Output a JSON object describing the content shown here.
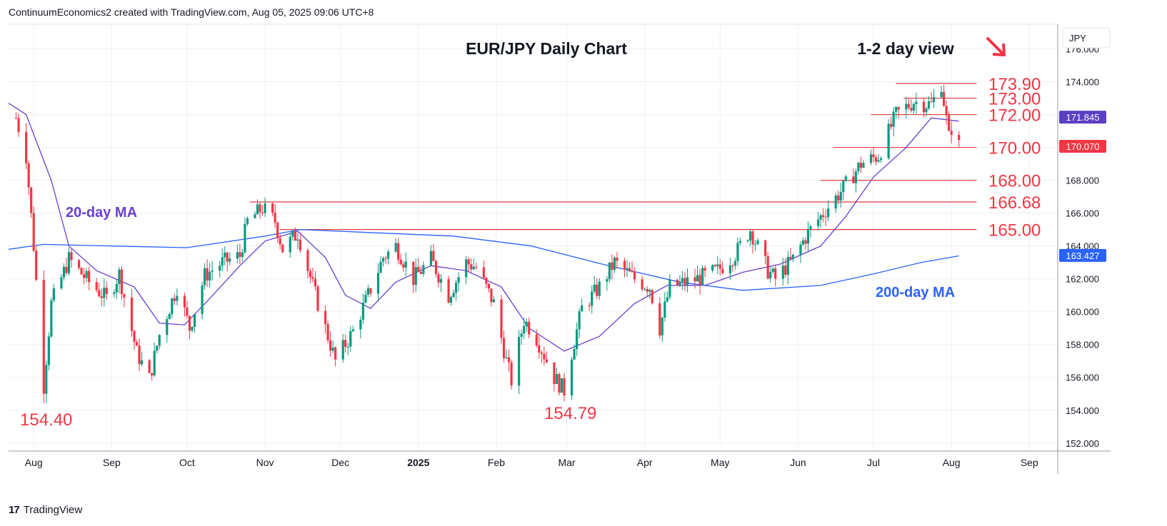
{
  "header": {
    "attribution": "ContinuumEconomics2 created with TradingView.com, Aug 05, 2025 09:06 UTC+8"
  },
  "footer": {
    "brand": "TradingView",
    "logo_icon": "tradingview-logo-icon"
  },
  "chart_data": {
    "type": "candlestick",
    "title": "EUR/JPY Daily Chart",
    "subtitle": "1-2 day view",
    "currency_label": "JPY",
    "view_arrow_icon": "down-right-arrow-icon",
    "ylim": [
      151.6,
      177.5
    ],
    "y_ticks": [
      "152.000",
      "154.000",
      "156.000",
      "158.000",
      "160.000",
      "162.000",
      "164.000",
      "166.000",
      "168.000",
      "170.000",
      "172.000",
      "174.000",
      "176.000"
    ],
    "x_tick_labels": [
      "Aug",
      "Sep",
      "Oct",
      "Nov",
      "Dec",
      "2025",
      "Feb",
      "Mar",
      "Apr",
      "May",
      "Jun",
      "Jul",
      "Aug",
      "Sep"
    ],
    "level_lines": [
      {
        "label": "173.90",
        "value": 173.9
      },
      {
        "label": "173.00",
        "value": 173.0
      },
      {
        "label": "172.00",
        "value": 172.0
      },
      {
        "label": "170.00",
        "value": 170.0
      },
      {
        "label": "168.00",
        "value": 168.0
      },
      {
        "label": "166.68",
        "value": 166.68
      },
      {
        "label": "165.00",
        "value": 165.0
      }
    ],
    "annotations": [
      {
        "label": "154.40",
        "value": 154.4
      },
      {
        "label": "154.79",
        "value": 154.79
      },
      {
        "label": "20-day MA"
      },
      {
        "label": "200-day MA"
      }
    ],
    "price_badges": [
      {
        "label": "171.845",
        "value": 171.845,
        "color": "#5b3fc4"
      },
      {
        "label": "170.070",
        "value": 170.07,
        "color": "#f23645"
      },
      {
        "label": "163.427",
        "value": 163.427,
        "color": "#2962ff"
      }
    ],
    "colors": {
      "up": "#089981",
      "down": "#f23645",
      "ma20": "#6a3fd1",
      "ma200": "#2962ff",
      "level": "#e03a3e",
      "text_red": "#f23645"
    },
    "price_path": [
      [
        "2024-07-25",
        171.8
      ],
      [
        "2024-07-29",
        169.5
      ],
      [
        "2024-08-01",
        164.0
      ],
      [
        "2024-08-05",
        155.5
      ],
      [
        "2024-08-08",
        160.5
      ],
      [
        "2024-08-15",
        163.2
      ],
      [
        "2024-08-23",
        161.8
      ],
      [
        "2024-08-30",
        160.8
      ],
      [
        "2024-09-04",
        162.3
      ],
      [
        "2024-09-11",
        157.5
      ],
      [
        "2024-09-16",
        155.9
      ],
      [
        "2024-09-20",
        158.6
      ],
      [
        "2024-09-27",
        161.5
      ],
      [
        "2024-10-02",
        159.0
      ],
      [
        "2024-10-08",
        162.2
      ],
      [
        "2024-10-15",
        163.0
      ],
      [
        "2024-10-22",
        163.4
      ],
      [
        "2024-10-25",
        165.5
      ],
      [
        "2024-10-31",
        166.3
      ],
      [
        "2024-11-05",
        165.5
      ],
      [
        "2024-11-08",
        163.8
      ],
      [
        "2024-11-14",
        164.8
      ],
      [
        "2024-11-22",
        160.5
      ],
      [
        "2024-11-29",
        157.0
      ],
      [
        "2024-12-06",
        158.8
      ],
      [
        "2024-12-12",
        161.0
      ],
      [
        "2024-12-18",
        163.3
      ],
      [
        "2024-12-23",
        164.0
      ],
      [
        "2024-12-30",
        162.0
      ],
      [
        "2025-01-06",
        163.2
      ],
      [
        "2025-01-13",
        161.0
      ],
      [
        "2025-01-20",
        163.0
      ],
      [
        "2025-01-24",
        162.7
      ],
      [
        "2025-01-31",
        160.5
      ],
      [
        "2025-02-05",
        157.0
      ],
      [
        "2025-02-07",
        155.8
      ],
      [
        "2025-02-12",
        159.5
      ],
      [
        "2025-02-17",
        158.4
      ],
      [
        "2025-02-24",
        156.0
      ],
      [
        "2025-02-28",
        155.2
      ],
      [
        "2025-03-03",
        157.5
      ],
      [
        "2025-03-07",
        160.2
      ],
      [
        "2025-03-14",
        161.5
      ],
      [
        "2025-03-20",
        163.0
      ],
      [
        "2025-03-28",
        162.0
      ],
      [
        "2025-04-03",
        161.5
      ],
      [
        "2025-04-07",
        159.0
      ],
      [
        "2025-04-11",
        161.5
      ],
      [
        "2025-04-22",
        162.0
      ],
      [
        "2025-04-30",
        162.5
      ],
      [
        "2025-05-07",
        163.5
      ],
      [
        "2025-05-13",
        165.0
      ],
      [
        "2025-05-20",
        162.5
      ],
      [
        "2025-05-23",
        162.0
      ],
      [
        "2025-05-30",
        163.2
      ],
      [
        "2025-06-05",
        164.8
      ],
      [
        "2025-06-12",
        166.2
      ],
      [
        "2025-06-19",
        167.5
      ],
      [
        "2025-06-26",
        169.0
      ],
      [
        "2025-07-03",
        169.5
      ],
      [
        "2025-07-10",
        172.0
      ],
      [
        "2025-07-17",
        172.8
      ],
      [
        "2025-07-24",
        172.6
      ],
      [
        "2025-07-28",
        173.9
      ],
      [
        "2025-07-31",
        170.6
      ],
      [
        "2025-08-01",
        171.2
      ],
      [
        "2025-08-04",
        170.1
      ]
    ],
    "ma20_path": [
      [
        "2024-07-22",
        172.7
      ],
      [
        "2024-07-29",
        172.0
      ],
      [
        "2024-08-08",
        168.0
      ],
      [
        "2024-08-15",
        164.0
      ],
      [
        "2024-08-26",
        162.5
      ],
      [
        "2024-09-10",
        161.5
      ],
      [
        "2024-09-20",
        159.3
      ],
      [
        "2024-09-30",
        159.2
      ],
      [
        "2024-10-10",
        160.8
      ],
      [
        "2024-10-22",
        162.8
      ],
      [
        "2024-11-01",
        164.3
      ],
      [
        "2024-11-14",
        164.9
      ],
      [
        "2024-11-25",
        163.3
      ],
      [
        "2024-12-03",
        161.0
      ],
      [
        "2024-12-13",
        160.2
      ],
      [
        "2024-12-23",
        161.8
      ],
      [
        "2025-01-06",
        162.8
      ],
      [
        "2025-01-20",
        162.5
      ],
      [
        "2025-02-03",
        161.5
      ],
      [
        "2025-02-14",
        159.0
      ],
      [
        "2025-02-28",
        157.6
      ],
      [
        "2025-03-14",
        158.5
      ],
      [
        "2025-03-28",
        160.5
      ],
      [
        "2025-04-10",
        161.6
      ],
      [
        "2025-04-25",
        161.6
      ],
      [
        "2025-05-10",
        162.4
      ],
      [
        "2025-05-25",
        162.9
      ],
      [
        "2025-06-10",
        164.0
      ],
      [
        "2025-06-20",
        165.8
      ],
      [
        "2025-07-01",
        168.2
      ],
      [
        "2025-07-14",
        170.0
      ],
      [
        "2025-07-24",
        171.8
      ],
      [
        "2025-08-04",
        171.6
      ]
    ],
    "ma200_path": [
      [
        "2024-07-22",
        163.8
      ],
      [
        "2024-08-05",
        164.1
      ],
      [
        "2024-09-01",
        164.0
      ],
      [
        "2024-10-01",
        163.9
      ],
      [
        "2024-11-01",
        164.6
      ],
      [
        "2024-11-15",
        165.0
      ],
      [
        "2024-12-15",
        164.8
      ],
      [
        "2025-01-15",
        164.6
      ],
      [
        "2025-02-15",
        164.0
      ],
      [
        "2025-03-15",
        162.9
      ],
      [
        "2025-04-15",
        161.8
      ],
      [
        "2025-05-10",
        161.3
      ],
      [
        "2025-06-10",
        161.6
      ],
      [
        "2025-07-01",
        162.3
      ],
      [
        "2025-07-20",
        163.0
      ],
      [
        "2025-08-04",
        163.4
      ]
    ]
  }
}
